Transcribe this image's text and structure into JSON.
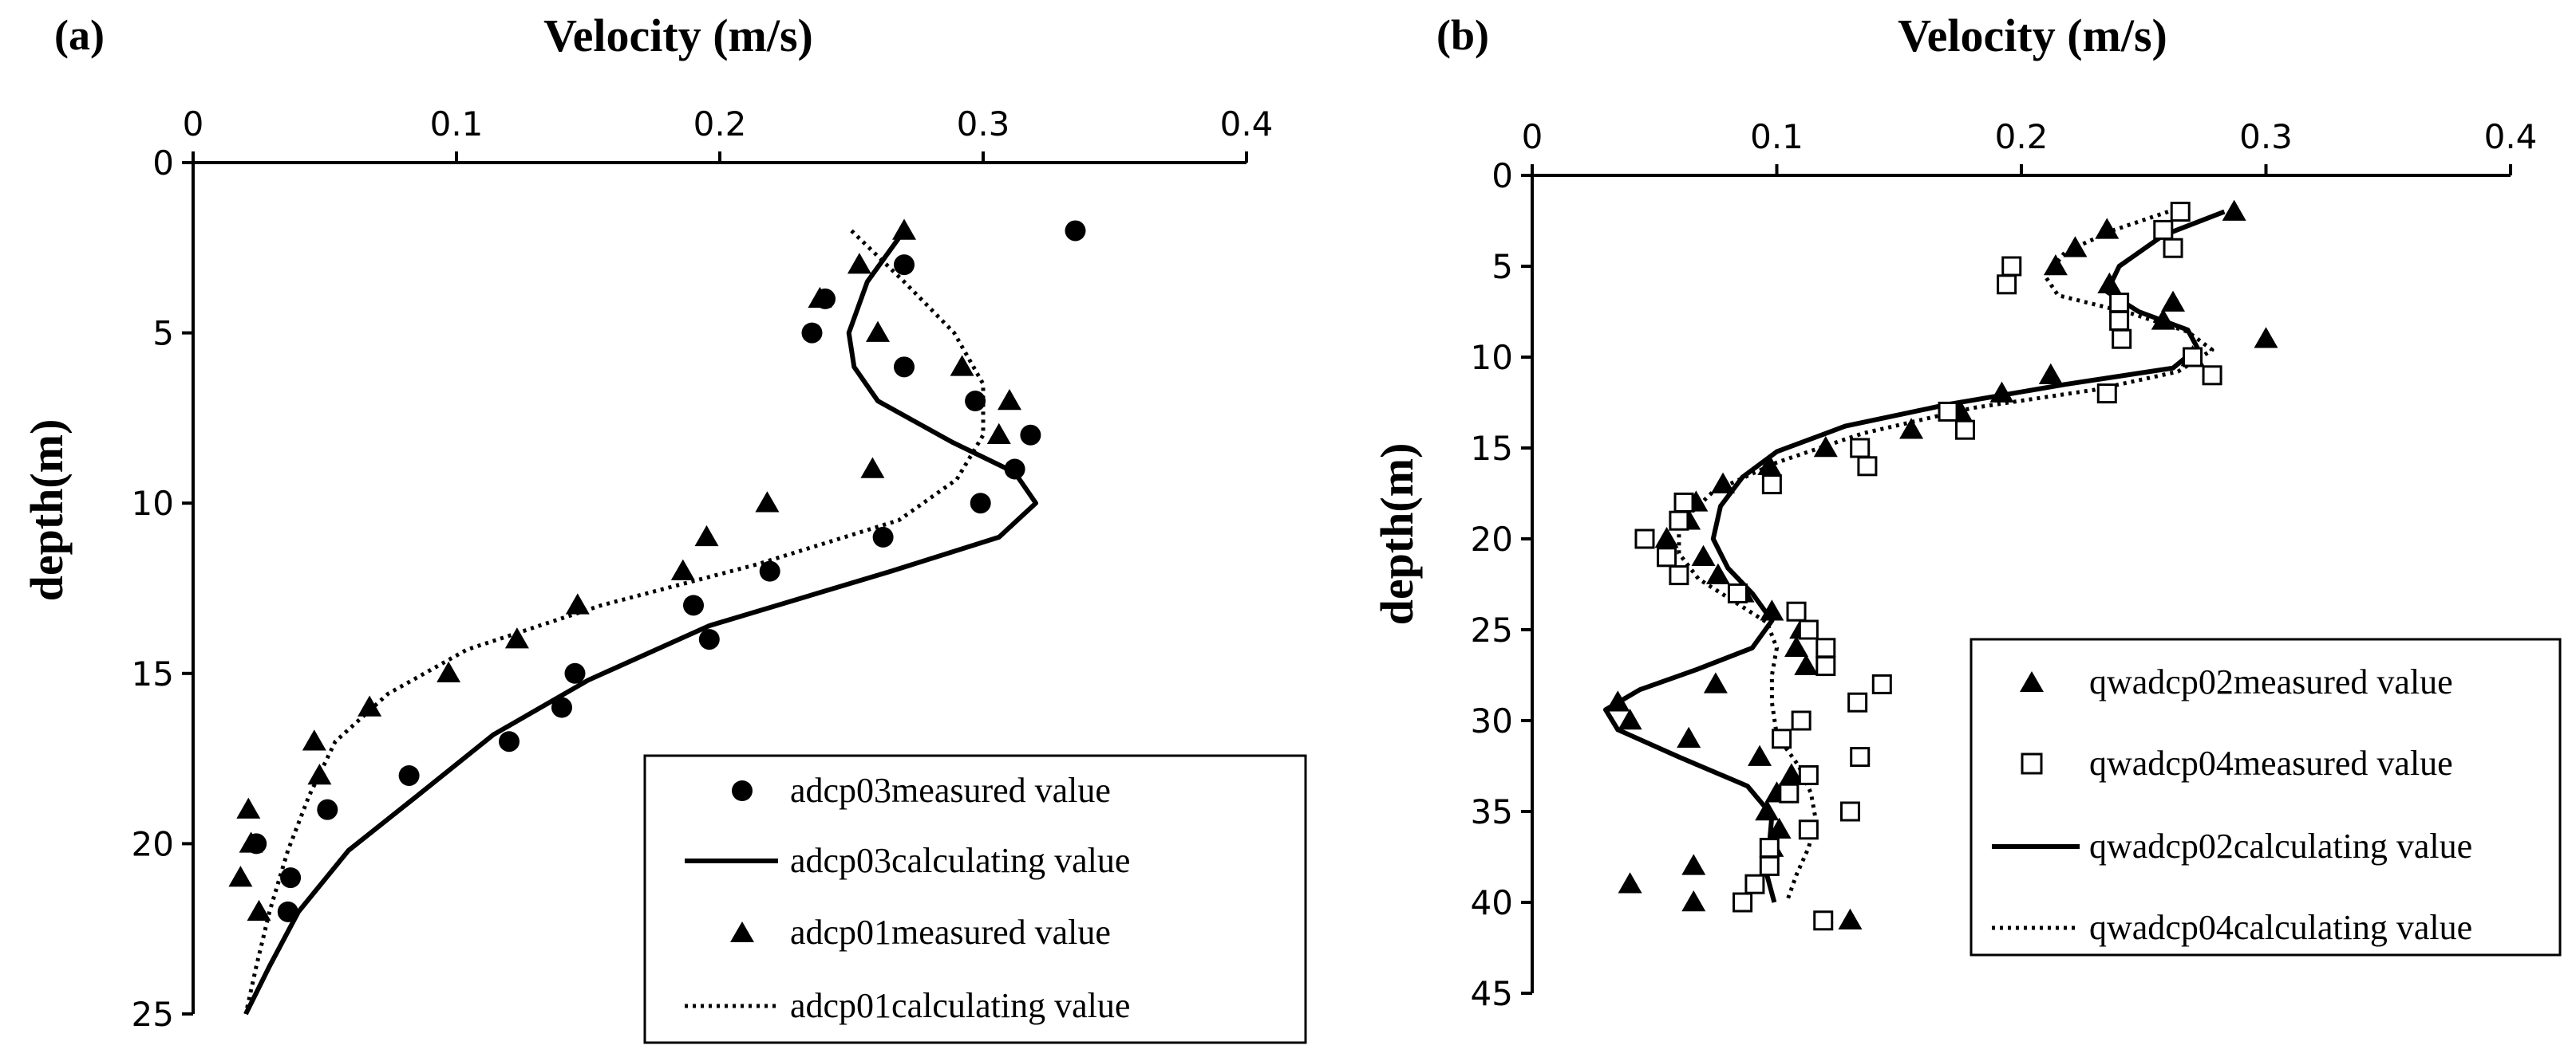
{
  "chart_data": [
    {
      "panel_label": "(a)",
      "type": "scatter",
      "xlabel": "Velocity (m/s)",
      "ylabel": "depth(m)",
      "xlim": [
        0,
        0.4
      ],
      "ylim": [
        0,
        25
      ],
      "y_inverted": true,
      "x_axis_position": "top",
      "x_ticks": [
        "0",
        "0.1",
        "0.2",
        "0.3",
        "0.4"
      ],
      "y_ticks": [
        "0",
        "5",
        "10",
        "15",
        "20",
        "25"
      ],
      "x_tick_values": [
        0,
        0.1,
        0.2,
        0.3,
        0.4
      ],
      "y_tick_values": [
        0,
        5,
        10,
        15,
        20,
        25
      ],
      "legend_position": "bottom-right",
      "series": [
        {
          "name": "adcp03measured value",
          "kind": "marker",
          "marker": "circle",
          "points": [
            [
              0.335,
              2
            ],
            [
              0.27,
              3
            ],
            [
              0.24,
              4
            ],
            [
              0.235,
              5
            ],
            [
              0.27,
              6
            ],
            [
              0.297,
              7
            ],
            [
              0.318,
              8
            ],
            [
              0.312,
              9
            ],
            [
              0.299,
              10
            ],
            [
              0.262,
              11
            ],
            [
              0.219,
              12
            ],
            [
              0.19,
              13
            ],
            [
              0.196,
              14
            ],
            [
              0.145,
              15
            ],
            [
              0.14,
              16
            ],
            [
              0.12,
              17
            ],
            [
              0.082,
              18
            ],
            [
              0.051,
              19
            ],
            [
              0.037,
              21
            ],
            [
              0.036,
              22
            ],
            [
              0.024,
              20
            ]
          ]
        },
        {
          "name": "adcp03calculating value",
          "kind": "line",
          "style": "solid",
          "points": [
            [
              0.27,
              2
            ],
            [
              0.256,
              3.5
            ],
            [
              0.249,
              5
            ],
            [
              0.251,
              6
            ],
            [
              0.26,
              7
            ],
            [
              0.288,
              8.2
            ],
            [
              0.312,
              9.1
            ],
            [
              0.32,
              10
            ],
            [
              0.306,
              11
            ],
            [
              0.265,
              12
            ],
            [
              0.196,
              13.6
            ],
            [
              0.15,
              15.2
            ],
            [
              0.114,
              16.8
            ],
            [
              0.085,
              18.6
            ],
            [
              0.059,
              20.2
            ],
            [
              0.04,
              22
            ],
            [
              0.029,
              23.6
            ],
            [
              0.02,
              25
            ]
          ]
        },
        {
          "name": "adcp01measured value",
          "kind": "marker",
          "marker": "triangle",
          "points": [
            [
              0.27,
              2
            ],
            [
              0.253,
              3
            ],
            [
              0.238,
              4
            ],
            [
              0.26,
              5
            ],
            [
              0.292,
              6
            ],
            [
              0.31,
              7
            ],
            [
              0.306,
              8
            ],
            [
              0.258,
              9
            ],
            [
              0.218,
              10
            ],
            [
              0.195,
              11
            ],
            [
              0.186,
              12
            ],
            [
              0.146,
              13
            ],
            [
              0.123,
              14
            ],
            [
              0.097,
              15
            ],
            [
              0.067,
              16
            ],
            [
              0.046,
              17
            ],
            [
              0.048,
              18
            ],
            [
              0.021,
              19
            ],
            [
              0.022,
              20
            ],
            [
              0.018,
              21
            ],
            [
              0.025,
              22
            ]
          ]
        },
        {
          "name": "adcp01calculating value",
          "kind": "line",
          "style": "dotted",
          "points": [
            [
              0.25,
              2
            ],
            [
              0.27,
              3.5
            ],
            [
              0.289,
              5
            ],
            [
              0.3,
              6.5
            ],
            [
              0.3,
              8
            ],
            [
              0.29,
              9.3
            ],
            [
              0.268,
              10.5
            ],
            [
              0.214,
              11.8
            ],
            [
              0.155,
              13
            ],
            [
              0.104,
              14.3
            ],
            [
              0.074,
              15.6
            ],
            [
              0.054,
              17
            ],
            [
              0.044,
              18.6
            ],
            [
              0.036,
              20.2
            ],
            [
              0.029,
              22
            ],
            [
              0.024,
              23.6
            ],
            [
              0.02,
              25
            ]
          ]
        }
      ]
    },
    {
      "panel_label": "(b)",
      "type": "scatter",
      "xlabel": "Velocity (m/s)",
      "ylabel": "depth(m)",
      "xlim": [
        0,
        0.4
      ],
      "ylim": [
        0,
        45
      ],
      "y_inverted": true,
      "x_axis_position": "top",
      "x_ticks": [
        "0",
        "0.1",
        "0.2",
        "0.3",
        "0.4"
      ],
      "y_ticks": [
        "0",
        "5",
        "10",
        "15",
        "20",
        "25",
        "30",
        "35",
        "40",
        "45"
      ],
      "x_tick_values": [
        0,
        0.1,
        0.2,
        0.3,
        0.4
      ],
      "y_tick_values": [
        0,
        5,
        10,
        15,
        20,
        25,
        30,
        35,
        40,
        45
      ],
      "legend_position": "right",
      "series": [
        {
          "name": "qwadcp02measured value",
          "kind": "marker",
          "marker": "triangle",
          "points": [
            [
              0.287,
              2
            ],
            [
              0.235,
              3
            ],
            [
              0.222,
              4
            ],
            [
              0.214,
              5
            ],
            [
              0.236,
              6
            ],
            [
              0.262,
              7
            ],
            [
              0.258,
              8
            ],
            [
              0.3,
              9
            ],
            [
              0.27,
              10
            ],
            [
              0.212,
              11
            ],
            [
              0.192,
              12
            ],
            [
              0.175,
              13
            ],
            [
              0.155,
              14
            ],
            [
              0.12,
              15
            ],
            [
              0.097,
              16
            ],
            [
              0.078,
              17
            ],
            [
              0.067,
              18
            ],
            [
              0.064,
              19
            ],
            [
              0.055,
              20
            ],
            [
              0.07,
              21
            ],
            [
              0.076,
              22
            ],
            [
              0.086,
              23
            ],
            [
              0.098,
              24
            ],
            [
              0.11,
              25
            ],
            [
              0.108,
              26
            ],
            [
              0.112,
              27
            ],
            [
              0.075,
              28
            ],
            [
              0.035,
              29
            ],
            [
              0.04,
              30
            ],
            [
              0.064,
              31
            ],
            [
              0.093,
              32
            ],
            [
              0.106,
              33
            ],
            [
              0.1,
              34
            ],
            [
              0.096,
              35
            ],
            [
              0.101,
              36
            ],
            [
              0.098,
              37
            ],
            [
              0.066,
              38
            ],
            [
              0.04,
              39
            ],
            [
              0.066,
              40
            ],
            [
              0.13,
              41
            ]
          ]
        },
        {
          "name": "qwadcp04measured value",
          "kind": "marker",
          "marker": "square",
          "points": [
            [
              0.265,
              2
            ],
            [
              0.258,
              3
            ],
            [
              0.262,
              4
            ],
            [
              0.196,
              5
            ],
            [
              0.194,
              6
            ],
            [
              0.24,
              7
            ],
            [
              0.24,
              8
            ],
            [
              0.241,
              9
            ],
            [
              0.27,
              10
            ],
            [
              0.278,
              11
            ],
            [
              0.235,
              12
            ],
            [
              0.17,
              13
            ],
            [
              0.177,
              14
            ],
            [
              0.134,
              15
            ],
            [
              0.137,
              16
            ],
            [
              0.098,
              17
            ],
            [
              0.062,
              18
            ],
            [
              0.06,
              19
            ],
            [
              0.046,
              20
            ],
            [
              0.055,
              21
            ],
            [
              0.06,
              22
            ],
            [
              0.084,
              23
            ],
            [
              0.108,
              24
            ],
            [
              0.113,
              25
            ],
            [
              0.12,
              26
            ],
            [
              0.12,
              27
            ],
            [
              0.143,
              28
            ],
            [
              0.133,
              29
            ],
            [
              0.11,
              30
            ],
            [
              0.102,
              31
            ],
            [
              0.134,
              32
            ],
            [
              0.113,
              33
            ],
            [
              0.105,
              34
            ],
            [
              0.13,
              35
            ],
            [
              0.113,
              36
            ],
            [
              0.097,
              37
            ],
            [
              0.097,
              38
            ],
            [
              0.091,
              39
            ],
            [
              0.086,
              40
            ],
            [
              0.119,
              41
            ]
          ]
        },
        {
          "name": "qwadcp02calculating value",
          "kind": "line",
          "style": "solid",
          "points": [
            [
              0.283,
              2
            ],
            [
              0.258,
              3.3
            ],
            [
              0.24,
              5
            ],
            [
              0.235,
              6.4
            ],
            [
              0.248,
              7.5
            ],
            [
              0.268,
              8.5
            ],
            [
              0.272,
              9.5
            ],
            [
              0.262,
              10.6
            ],
            [
              0.218,
              11.5
            ],
            [
              0.17,
              12.6
            ],
            [
              0.128,
              13.8
            ],
            [
              0.1,
              15.2
            ],
            [
              0.086,
              16.6
            ],
            [
              0.077,
              18.2
            ],
            [
              0.074,
              20
            ],
            [
              0.08,
              21.6
            ],
            [
              0.09,
              23
            ],
            [
              0.098,
              24.5
            ],
            [
              0.09,
              26
            ],
            [
              0.067,
              27.2
            ],
            [
              0.044,
              28.3
            ],
            [
              0.03,
              29.4
            ],
            [
              0.035,
              30.5
            ],
            [
              0.06,
              32
            ],
            [
              0.088,
              33.6
            ],
            [
              0.098,
              35.2
            ],
            [
              0.097,
              36.8
            ],
            [
              0.096,
              38.5
            ],
            [
              0.099,
              40
            ]
          ]
        },
        {
          "name": "qwadcp04calculating value",
          "kind": "line",
          "style": "dotted",
          "points": [
            [
              0.26,
              2
            ],
            [
              0.238,
              3
            ],
            [
              0.218,
              4.2
            ],
            [
              0.21,
              5.6
            ],
            [
              0.215,
              6.6
            ],
            [
              0.245,
              7.6
            ],
            [
              0.268,
              8.6
            ],
            [
              0.278,
              9.6
            ],
            [
              0.264,
              10.8
            ],
            [
              0.23,
              11.8
            ],
            [
              0.18,
              12.8
            ],
            [
              0.135,
              14.2
            ],
            [
              0.1,
              15.8
            ],
            [
              0.074,
              17.4
            ],
            [
              0.06,
              19.2
            ],
            [
              0.06,
              20.8
            ],
            [
              0.068,
              22.2
            ],
            [
              0.082,
              23.4
            ],
            [
              0.096,
              24.6
            ],
            [
              0.1,
              26
            ],
            [
              0.098,
              27.5
            ],
            [
              0.098,
              29
            ],
            [
              0.1,
              30.8
            ],
            [
              0.109,
              32.5
            ],
            [
              0.114,
              34
            ],
            [
              0.116,
              35.5
            ],
            [
              0.113,
              37
            ],
            [
              0.108,
              38.5
            ],
            [
              0.104,
              40
            ]
          ]
        }
      ]
    }
  ]
}
